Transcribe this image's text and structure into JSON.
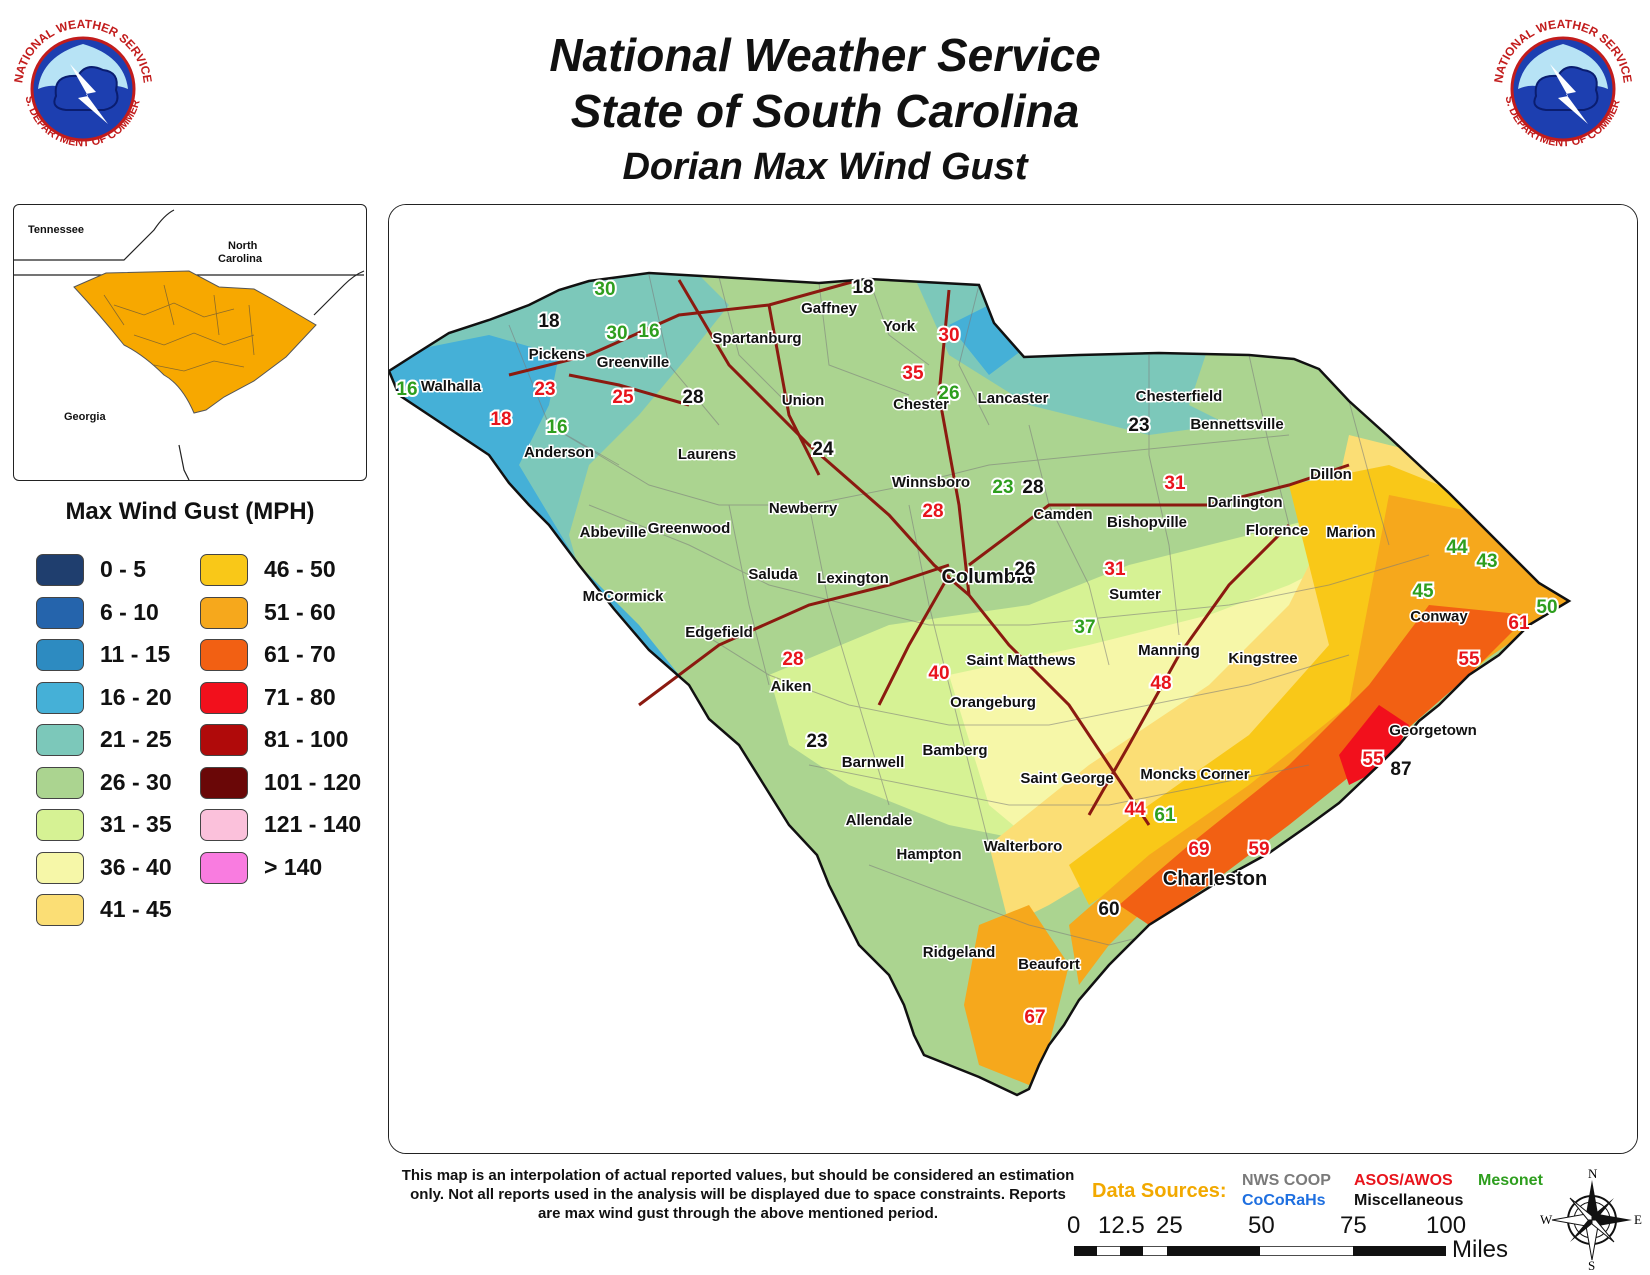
{
  "title": {
    "line1": "National Weather Service",
    "line2": "State of South Carolina",
    "line3": "Dorian Max Wind Gust"
  },
  "logo": {
    "text_top": "NATIONAL WEATHER SERVICE",
    "text_bottom": "U.S. DEPARTMENT OF COMMERCE",
    "icon": "nws-logo"
  },
  "inset": {
    "labels": [
      "Tennessee",
      "North\nCarolina",
      "Georgia"
    ],
    "state_fill": "#F7A800"
  },
  "legend": {
    "title": "Max Wind Gust (MPH)",
    "items": [
      {
        "label": "0 - 5",
        "color": "#1F3E6E"
      },
      {
        "label": "6 - 10",
        "color": "#2564AC"
      },
      {
        "label": "11 - 15",
        "color": "#2D8BC1"
      },
      {
        "label": "16 - 20",
        "color": "#45B0D7"
      },
      {
        "label": "21 - 25",
        "color": "#7CC8BA"
      },
      {
        "label": "26 - 30",
        "color": "#ABD490"
      },
      {
        "label": "31 - 35",
        "color": "#D6F294"
      },
      {
        "label": "36 - 40",
        "color": "#F6F7A8"
      },
      {
        "label": "41 - 45",
        "color": "#FBDE75"
      },
      {
        "label": "46 - 50",
        "color": "#F9C818"
      },
      {
        "label": "51 - 60",
        "color": "#F6A81C"
      },
      {
        "label": "61 - 70",
        "color": "#F26013"
      },
      {
        "label": "71 - 80",
        "color": "#F2101C"
      },
      {
        "label": "81 - 100",
        "color": "#B00A0A"
      },
      {
        "label": "101 - 120",
        "color": "#6A0707"
      },
      {
        "label": "121 - 140",
        "color": "#FBC1DB"
      },
      {
        "label": "> 140",
        "color": "#F97CE0"
      }
    ]
  },
  "cities": [
    {
      "name": "Gaffney"
    },
    {
      "name": "York"
    },
    {
      "name": "Spartanburg"
    },
    {
      "name": "Pickens"
    },
    {
      "name": "Greenville"
    },
    {
      "name": "Walhalla"
    },
    {
      "name": "Union"
    },
    {
      "name": "Chester"
    },
    {
      "name": "Lancaster"
    },
    {
      "name": "Chesterfield"
    },
    {
      "name": "Bennettsville"
    },
    {
      "name": "Anderson"
    },
    {
      "name": "Laurens"
    },
    {
      "name": "Winnsboro"
    },
    {
      "name": "Dillon"
    },
    {
      "name": "Darlington"
    },
    {
      "name": "Newberry"
    },
    {
      "name": "Camden"
    },
    {
      "name": "Bishopville"
    },
    {
      "name": "Florence"
    },
    {
      "name": "Marion"
    },
    {
      "name": "Abbeville"
    },
    {
      "name": "Greenwood"
    },
    {
      "name": "Saluda"
    },
    {
      "name": "Lexington"
    },
    {
      "name": "Columbia"
    },
    {
      "name": "McCormick"
    },
    {
      "name": "Sumter"
    },
    {
      "name": "Edgefield"
    },
    {
      "name": "Conway"
    },
    {
      "name": "Saint Matthews"
    },
    {
      "name": "Manning"
    },
    {
      "name": "Kingstree"
    },
    {
      "name": "Aiken"
    },
    {
      "name": "Orangeburg"
    },
    {
      "name": "Georgetown"
    },
    {
      "name": "Bamberg"
    },
    {
      "name": "Barnwell"
    },
    {
      "name": "Saint George"
    },
    {
      "name": "Moncks Corner"
    },
    {
      "name": "Allendale"
    },
    {
      "name": "Hampton"
    },
    {
      "name": "Walterboro"
    },
    {
      "name": "Charleston"
    },
    {
      "name": "Ridgeland"
    },
    {
      "name": "Beaufort"
    }
  ],
  "observations": [
    {
      "value": "30",
      "source": "mesonet"
    },
    {
      "value": "18",
      "source": "misc"
    },
    {
      "value": "18",
      "source": "misc"
    },
    {
      "value": "30",
      "source": "mesonet"
    },
    {
      "value": "16",
      "source": "mesonet"
    },
    {
      "value": "30",
      "source": "asos"
    },
    {
      "value": "35",
      "source": "asos"
    },
    {
      "value": "26",
      "source": "mesonet"
    },
    {
      "value": "16",
      "source": "mesonet"
    },
    {
      "value": "23",
      "source": "asos"
    },
    {
      "value": "25",
      "source": "asos"
    },
    {
      "value": "28",
      "source": "misc"
    },
    {
      "value": "18",
      "source": "asos"
    },
    {
      "value": "16",
      "source": "mesonet"
    },
    {
      "value": "24",
      "source": "misc"
    },
    {
      "value": "23",
      "source": "misc"
    },
    {
      "value": "23",
      "source": "mesonet"
    },
    {
      "value": "28",
      "source": "misc"
    },
    {
      "value": "31",
      "source": "asos"
    },
    {
      "value": "28",
      "source": "asos"
    },
    {
      "value": "26",
      "source": "misc"
    },
    {
      "value": "31",
      "source": "asos"
    },
    {
      "value": "44",
      "source": "mesonet"
    },
    {
      "value": "43",
      "source": "mesonet"
    },
    {
      "value": "45",
      "source": "mesonet"
    },
    {
      "value": "50",
      "source": "mesonet"
    },
    {
      "value": "61",
      "source": "asos"
    },
    {
      "value": "37",
      "source": "mesonet"
    },
    {
      "value": "28",
      "source": "asos"
    },
    {
      "value": "55",
      "source": "asos"
    },
    {
      "value": "40",
      "source": "asos"
    },
    {
      "value": "48",
      "source": "asos"
    },
    {
      "value": "23",
      "source": "misc"
    },
    {
      "value": "55",
      "source": "asos"
    },
    {
      "value": "87",
      "source": "misc"
    },
    {
      "value": "44",
      "source": "asos"
    },
    {
      "value": "61",
      "source": "mesonet"
    },
    {
      "value": "69",
      "source": "asos"
    },
    {
      "value": "59",
      "source": "asos"
    },
    {
      "value": "60",
      "source": "misc"
    },
    {
      "value": "67",
      "source": "asos"
    }
  ],
  "source_colors": {
    "asos": "#E8141C",
    "mesonet": "#2E9E1E",
    "misc": "#111111",
    "coop": "#7A7A7A",
    "cocorahs": "#1E6FE0"
  },
  "disclaimer": "This map is an interpolation of actual reported values, but should be considered an estimation only. Not all reports used in the analysis will be displayed due to space constraints. Reports are max wind gust through the above mentioned period.",
  "data_sources": {
    "title": "Data Sources:",
    "nws_coop": "NWS COOP",
    "asos_awos": "ASOS/AWOS",
    "mesonet": "Mesonet",
    "cocorahs": "CoCoRaHs",
    "misc": "Miscellaneous"
  },
  "scale": {
    "ticks": [
      "0",
      "12.5",
      "25",
      "50",
      "75",
      "100"
    ],
    "unit": "Miles"
  },
  "compass": {
    "n": "N",
    "s": "S",
    "e": "E",
    "w": "W"
  }
}
